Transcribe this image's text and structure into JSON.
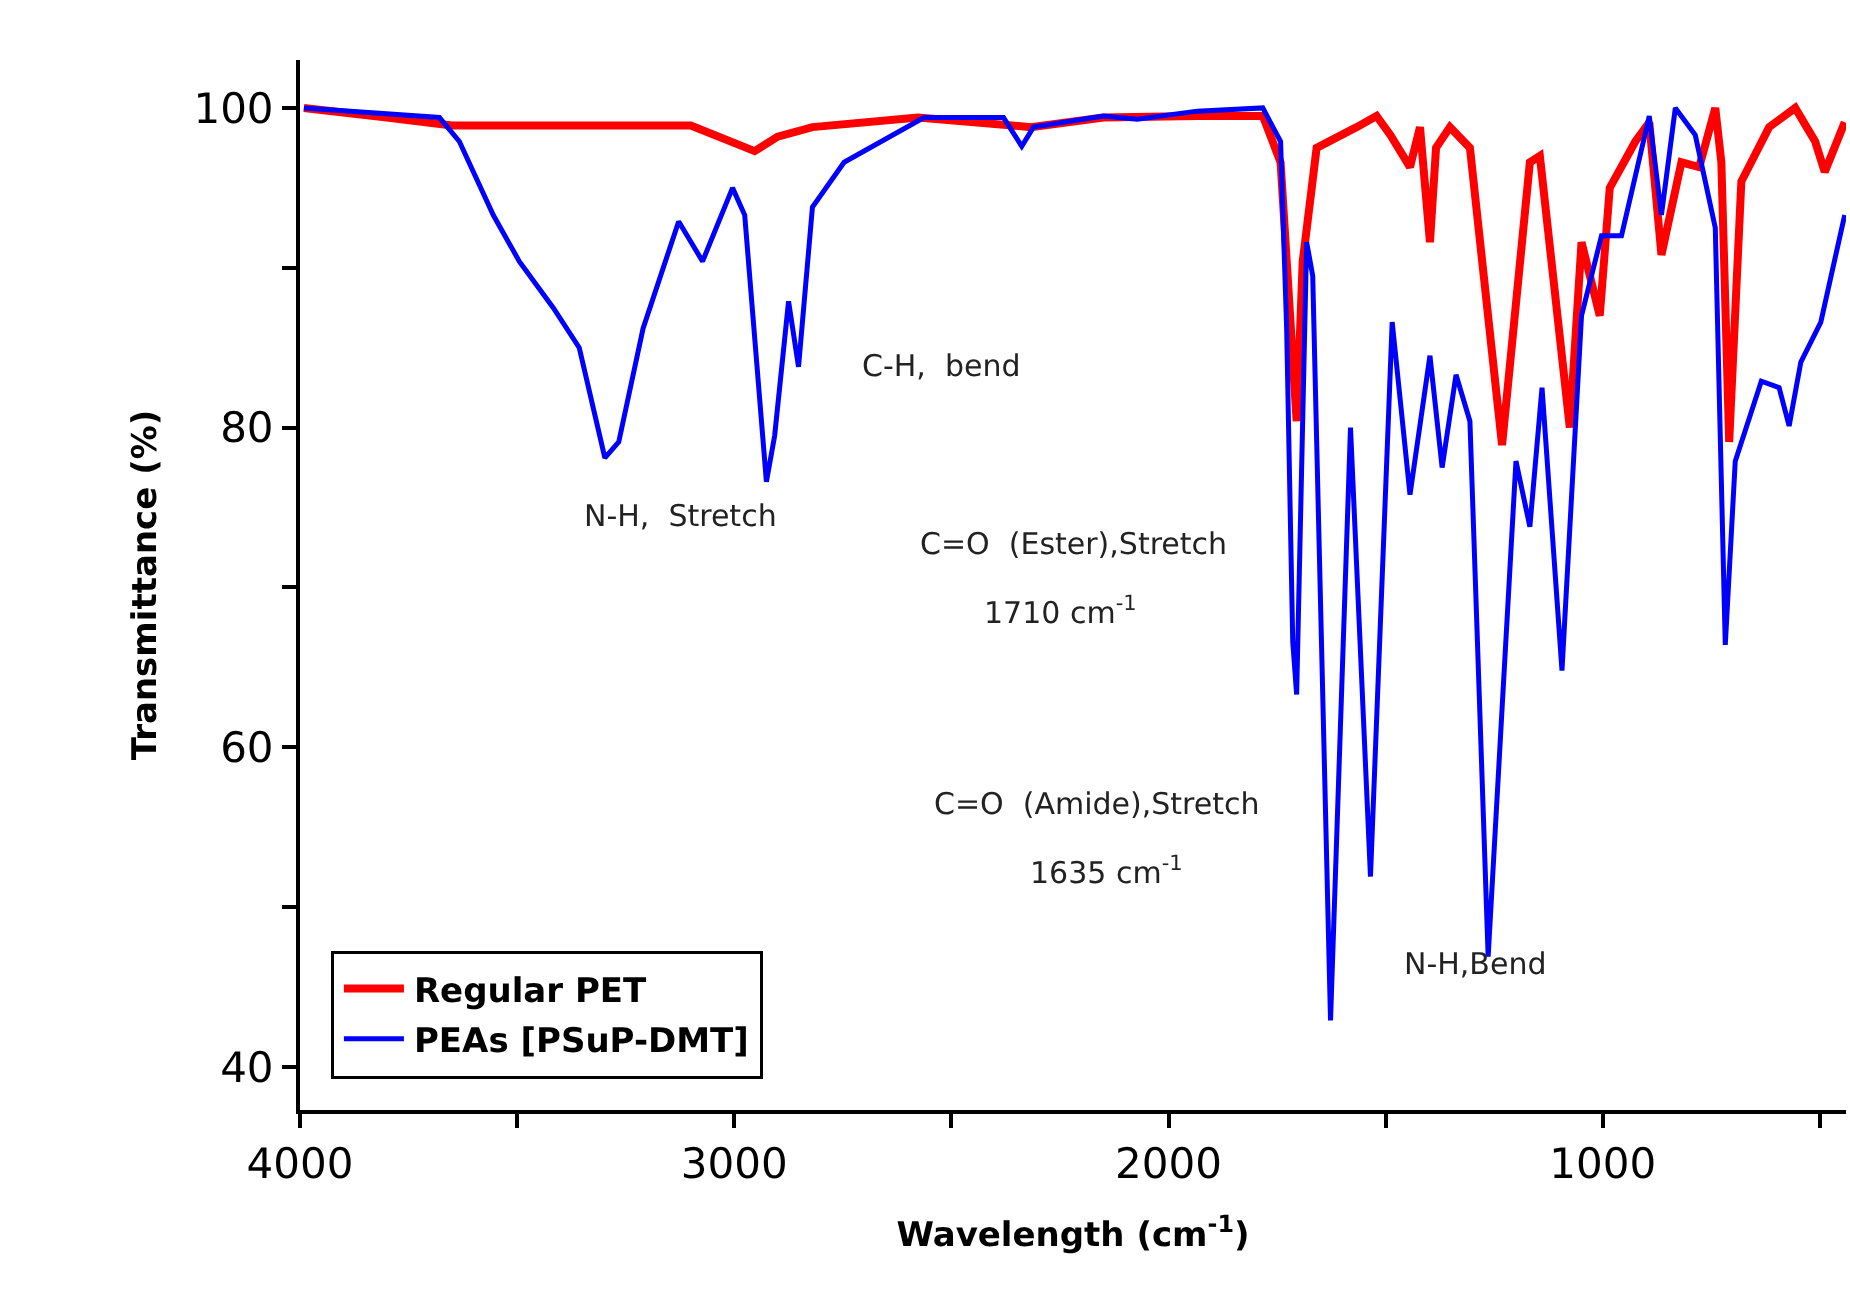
{
  "chart_data": {
    "type": "line",
    "xlabel": "Wavelength (cm$^{-1}$)",
    "ylabel": "Transmittance (%)",
    "xlim": [
      4000,
      440
    ],
    "ylim": [
      37.3,
      103
    ],
    "xticks": [
      4000,
      {
        "value": 3500,
        "label": null
      },
      3000,
      {
        "value": 2500,
        "label": null
      },
      2000,
      {
        "value": 1500,
        "label": null
      },
      1000,
      {
        "value": 500,
        "label": null
      }
    ],
    "yticks": [
      40,
      {
        "value": 50,
        "label": null
      },
      60,
      {
        "value": 70,
        "label": null
      },
      80,
      {
        "value": 90,
        "label": null
      },
      100
    ],
    "grid": false,
    "legend": "bottom left",
    "marker": "none",
    "line_style": "solid",
    "series": [
      {
        "name": "Regular PET",
        "color": "#ff0000",
        "x": [
          3991,
          3800,
          3650,
          3400,
          3100,
          2953,
          2900,
          2820,
          2577,
          2317,
          2150,
          1934,
          1783,
          1742,
          1705,
          1691,
          1659,
          1567,
          1521,
          1489,
          1444,
          1421,
          1398,
          1384,
          1352,
          1306,
          1232,
          1168,
          1145,
          1076,
          1049,
          1007,
          984,
          925,
          893,
          865,
          819,
          778,
          741,
          727,
          709,
          681,
          617,
          557,
          511,
          489,
          443
        ],
        "values": [
          100,
          99.4,
          98.9,
          98.9,
          98.9,
          97.3,
          98.2,
          98.8,
          99.4,
          98.8,
          99.4,
          99.5,
          99.5,
          96.6,
          80.4,
          90.4,
          97.5,
          98.8,
          99.5,
          98.3,
          96.3,
          98.8,
          91.6,
          97.5,
          98.8,
          97.5,
          78.9,
          96.6,
          97,
          80,
          91.6,
          87,
          95,
          97.9,
          99.1,
          90.8,
          96.6,
          96.3,
          100,
          96.6,
          79.1,
          95.4,
          98.8,
          100,
          97.9,
          96,
          99.1
        ]
      },
      {
        "name": "PEAs [PSuP-DMT]",
        "color": "#0000ff",
        "x": [
          3991,
          3679,
          3633,
          3555,
          3495,
          3417,
          3357,
          3298,
          3266,
          3210,
          3128,
          3073,
          3004,
          2976,
          2926,
          2907,
          2875,
          2852,
          2820,
          2747,
          2563,
          2380,
          2338,
          2311,
          2150,
          2072,
          1934,
          1783,
          1742,
          1728,
          1714,
          1705,
          1682,
          1668,
          1627,
          1581,
          1535,
          1485,
          1444,
          1398,
          1370,
          1338,
          1306,
          1264,
          1200,
          1168,
          1140,
          1094,
          1049,
          1003,
          957,
          893,
          865,
          833,
          787,
          741,
          718,
          695,
          635,
          594,
          571,
          544,
          498,
          443
        ],
        "values": [
          100,
          99.4,
          97.9,
          93.3,
          90.4,
          87.5,
          85,
          78.1,
          79.1,
          86.2,
          92.9,
          90.4,
          95,
          93.3,
          76.6,
          79.5,
          87.9,
          83.8,
          93.8,
          96.6,
          99.4,
          99.4,
          97.6,
          98.8,
          99.5,
          99.3,
          99.8,
          100,
          97.9,
          86.2,
          66.6,
          63.3,
          91.6,
          89.5,
          42.9,
          80,
          51.9,
          86.6,
          75.8,
          84.5,
          77.5,
          83.3,
          80.4,
          46.9,
          77.9,
          73.8,
          82.5,
          64.8,
          87,
          92,
          92,
          99.5,
          93.3,
          100,
          98.3,
          92.5,
          66.4,
          77.9,
          82.9,
          82.5,
          80.1,
          84.1,
          86.6,
          93.3
        ]
      }
    ],
    "annotations": [
      "N-H,  Stretch",
      "C-H,  bend",
      "C=O  (Ester),Stretch",
      "1710 cm$^{-1}$",
      "C=O  (Amide),Stretch",
      "1635 cm$^{-1}$",
      "N-H,Bend"
    ]
  }
}
